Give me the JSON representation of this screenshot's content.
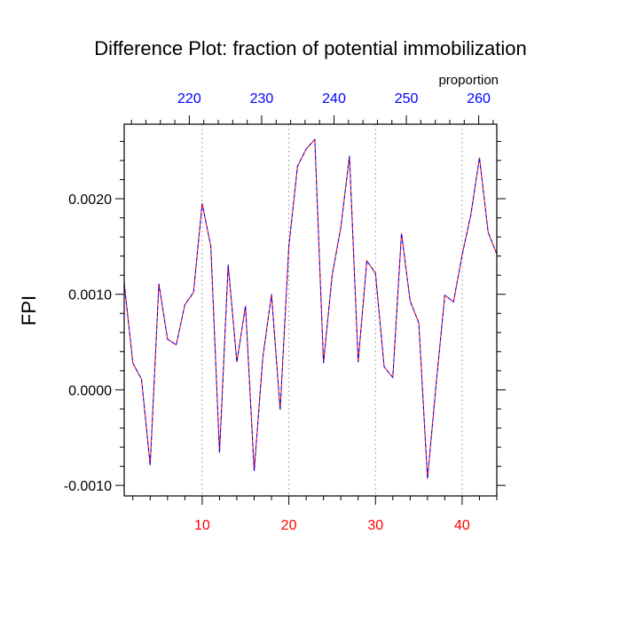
{
  "chart_data": {
    "type": "line",
    "title": "Difference Plot: fraction of potential immobilization",
    "ylabel": "FPI",
    "top_axis_label": "proportion",
    "x_bottom": {
      "range": [
        1,
        44
      ],
      "ticks": [
        10,
        20,
        30,
        40
      ],
      "tick_labels": [
        "10",
        "20",
        "30",
        "40"
      ],
      "color": "#ff0000"
    },
    "x_top": {
      "range": [
        211,
        262.5
      ],
      "ticks": [
        220,
        230,
        240,
        250,
        260
      ],
      "tick_labels": [
        "220",
        "230",
        "240",
        "250",
        "260"
      ],
      "color": "#0000ff"
    },
    "y": {
      "range": [
        -0.00111,
        0.00278
      ],
      "ticks": [
        -0.001,
        0.0,
        0.001,
        0.002
      ],
      "tick_labels": [
        "-0.0010",
        "0.0000",
        "0.0010",
        "0.0020"
      ],
      "minor_step": 0.0002
    },
    "grid": "vertical dotted at bottom ticks",
    "series": [
      {
        "color": "#ff0000",
        "dash_color": "#0000ff",
        "x": [
          1,
          2,
          3,
          4,
          5,
          6,
          7,
          8,
          9,
          10,
          11,
          12,
          13,
          14,
          15,
          16,
          17,
          18,
          19,
          20,
          21,
          22,
          23,
          24,
          25,
          26,
          27,
          28,
          29,
          30,
          31,
          32,
          33,
          34,
          35,
          36,
          37,
          38,
          39,
          40,
          41,
          42,
          43,
          44
        ],
        "values": [
          0.00112,
          0.00028,
          0.00011,
          -0.00079,
          0.00111,
          0.00053,
          0.00047,
          0.00089,
          0.00102,
          0.00195,
          0.0015,
          -0.00066,
          0.00131,
          0.00029,
          0.00088,
          -0.00085,
          0.00034,
          0.001,
          -0.00021,
          0.0015,
          0.00234,
          0.00252,
          0.00262,
          0.00028,
          0.0012,
          0.0017,
          0.00245,
          0.00029,
          0.00135,
          0.00122,
          0.00024,
          0.00013,
          0.00164,
          0.00093,
          0.0007,
          -0.00093,
          6e-05,
          0.00099,
          0.00092,
          0.00141,
          0.00183,
          0.00243,
          0.00165,
          0.00142
        ]
      }
    ]
  }
}
